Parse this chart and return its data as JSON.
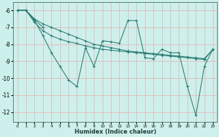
{
  "xlabel": "Humidex (Indice chaleur)",
  "background_color": "#cdf0ec",
  "grid_color": "#e8aaaa",
  "line_color": "#2d7d72",
  "xlim": [
    -0.5,
    23.5
  ],
  "ylim": [
    -12.6,
    -5.5
  ],
  "yticks": [
    -12,
    -11,
    -10,
    -9,
    -8,
    -7,
    -6
  ],
  "xticks": [
    0,
    1,
    2,
    3,
    4,
    5,
    6,
    7,
    8,
    9,
    10,
    11,
    12,
    13,
    14,
    15,
    16,
    17,
    18,
    19,
    20,
    21,
    22,
    23
  ],
  "series": [
    {
      "x": [
        0,
        1,
        2,
        3,
        4,
        5,
        6,
        7,
        8,
        9,
        10,
        11,
        12,
        13,
        14,
        15,
        16,
        17,
        18,
        19,
        20,
        21,
        22,
        23
      ],
      "y": [
        -6.0,
        -6.0,
        -6.5,
        -6.8,
        -7.0,
        -7.2,
        -7.4,
        -7.6,
        -7.8,
        -8.0,
        -8.1,
        -8.2,
        -8.3,
        -8.4,
        -8.45,
        -8.5,
        -8.55,
        -8.6,
        -8.65,
        -8.7,
        -8.75,
        -8.8,
        -8.85,
        -8.3
      ]
    },
    {
      "x": [
        0,
        1,
        2,
        3,
        4,
        5,
        6,
        7,
        8,
        9,
        10,
        11,
        12,
        13,
        14,
        15,
        16,
        17,
        18,
        19,
        20,
        21,
        22,
        23
      ],
      "y": [
        -6.0,
        -6.0,
        -6.7,
        -7.2,
        -7.5,
        -7.7,
        -7.85,
        -7.95,
        -8.1,
        -8.2,
        -8.3,
        -8.35,
        -8.4,
        -8.45,
        -8.5,
        -8.55,
        -8.6,
        -8.65,
        -8.7,
        -8.75,
        -8.8,
        -8.85,
        -8.9,
        -8.3
      ]
    },
    {
      "x": [
        0,
        1,
        2,
        3,
        4,
        5,
        6,
        7,
        8,
        9,
        10,
        11,
        12,
        13,
        14,
        15,
        16,
        17,
        18,
        19,
        20,
        21,
        22,
        23
      ],
      "y": [
        -6.0,
        -6.0,
        -6.6,
        -7.5,
        -8.5,
        -9.3,
        -10.1,
        -10.5,
        -8.2,
        -9.3,
        -7.8,
        -7.85,
        -7.95,
        -6.6,
        -6.6,
        -8.8,
        -8.85,
        -8.3,
        -8.5,
        -8.5,
        -10.5,
        -12.2,
        -9.3,
        -8.3
      ]
    },
    {
      "x": [
        0,
        1,
        2,
        3
      ],
      "y": [
        -6.0,
        -6.0,
        -6.55,
        -7.0
      ]
    }
  ]
}
